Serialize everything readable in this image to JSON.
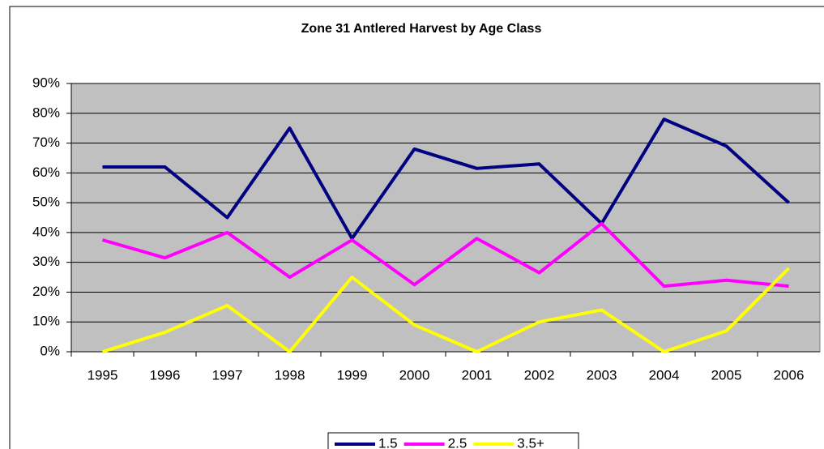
{
  "chart_data": {
    "type": "line",
    "title": "Zone 31 Antlered Harvest by Age Class",
    "categories": [
      "1995",
      "1996",
      "1997",
      "1998",
      "1999",
      "2000",
      "2001",
      "2002",
      "2003",
      "2004",
      "2005",
      "2006"
    ],
    "series": [
      {
        "name": "1.5",
        "color": "#000080",
        "values": [
          62,
          62,
          45,
          75,
          38,
          68,
          61.5,
          63,
          43,
          78,
          69,
          50
        ]
      },
      {
        "name": "2.5",
        "color": "#ff00ff",
        "values": [
          37.5,
          31.5,
          40,
          25,
          37.5,
          22.5,
          38,
          26.5,
          43,
          22,
          24,
          22
        ]
      },
      {
        "name": "3.5+",
        "color": "#ffff00",
        "values": [
          0,
          6.5,
          15.5,
          0,
          25,
          9,
          0,
          10,
          14,
          0,
          7,
          28
        ]
      }
    ],
    "ylim": [
      0,
      90
    ],
    "yticks": [
      {
        "value": 0,
        "label": "0%"
      },
      {
        "value": 10,
        "label": "10%"
      },
      {
        "value": 20,
        "label": "20%"
      },
      {
        "value": 30,
        "label": "30%"
      },
      {
        "value": 40,
        "label": "40%"
      },
      {
        "value": 50,
        "label": "50%"
      },
      {
        "value": 60,
        "label": "60%"
      },
      {
        "value": 70,
        "label": "70%"
      },
      {
        "value": 80,
        "label": "80%"
      },
      {
        "value": 90,
        "label": "90%"
      }
    ],
    "grid": true,
    "legend": "bottom"
  }
}
